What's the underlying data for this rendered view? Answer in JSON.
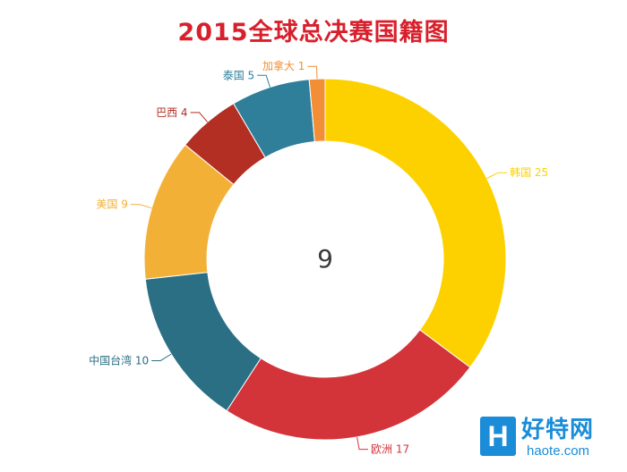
{
  "chart_data": {
    "type": "pie",
    "title": "2015全球总决赛国籍图",
    "center_text": "9",
    "donut": true,
    "slices": [
      {
        "label": "韩国",
        "value": 25,
        "color": "#fdd100"
      },
      {
        "label": "欧洲",
        "value": 17,
        "color": "#d3343a"
      },
      {
        "label": "中国台湾",
        "value": 10,
        "color": "#2b6f84"
      },
      {
        "label": "美国",
        "value": 9,
        "color": "#f2b136"
      },
      {
        "label": "巴西",
        "value": 4,
        "color": "#b32f24"
      },
      {
        "label": "泰国",
        "value": 5,
        "color": "#2f7f9b"
      },
      {
        "label": "加拿大",
        "value": 1,
        "color": "#f28f36"
      }
    ]
  },
  "watermark": {
    "logo_letter": "H",
    "site_name_cn": "好特网",
    "site_domain": "haote.com"
  }
}
